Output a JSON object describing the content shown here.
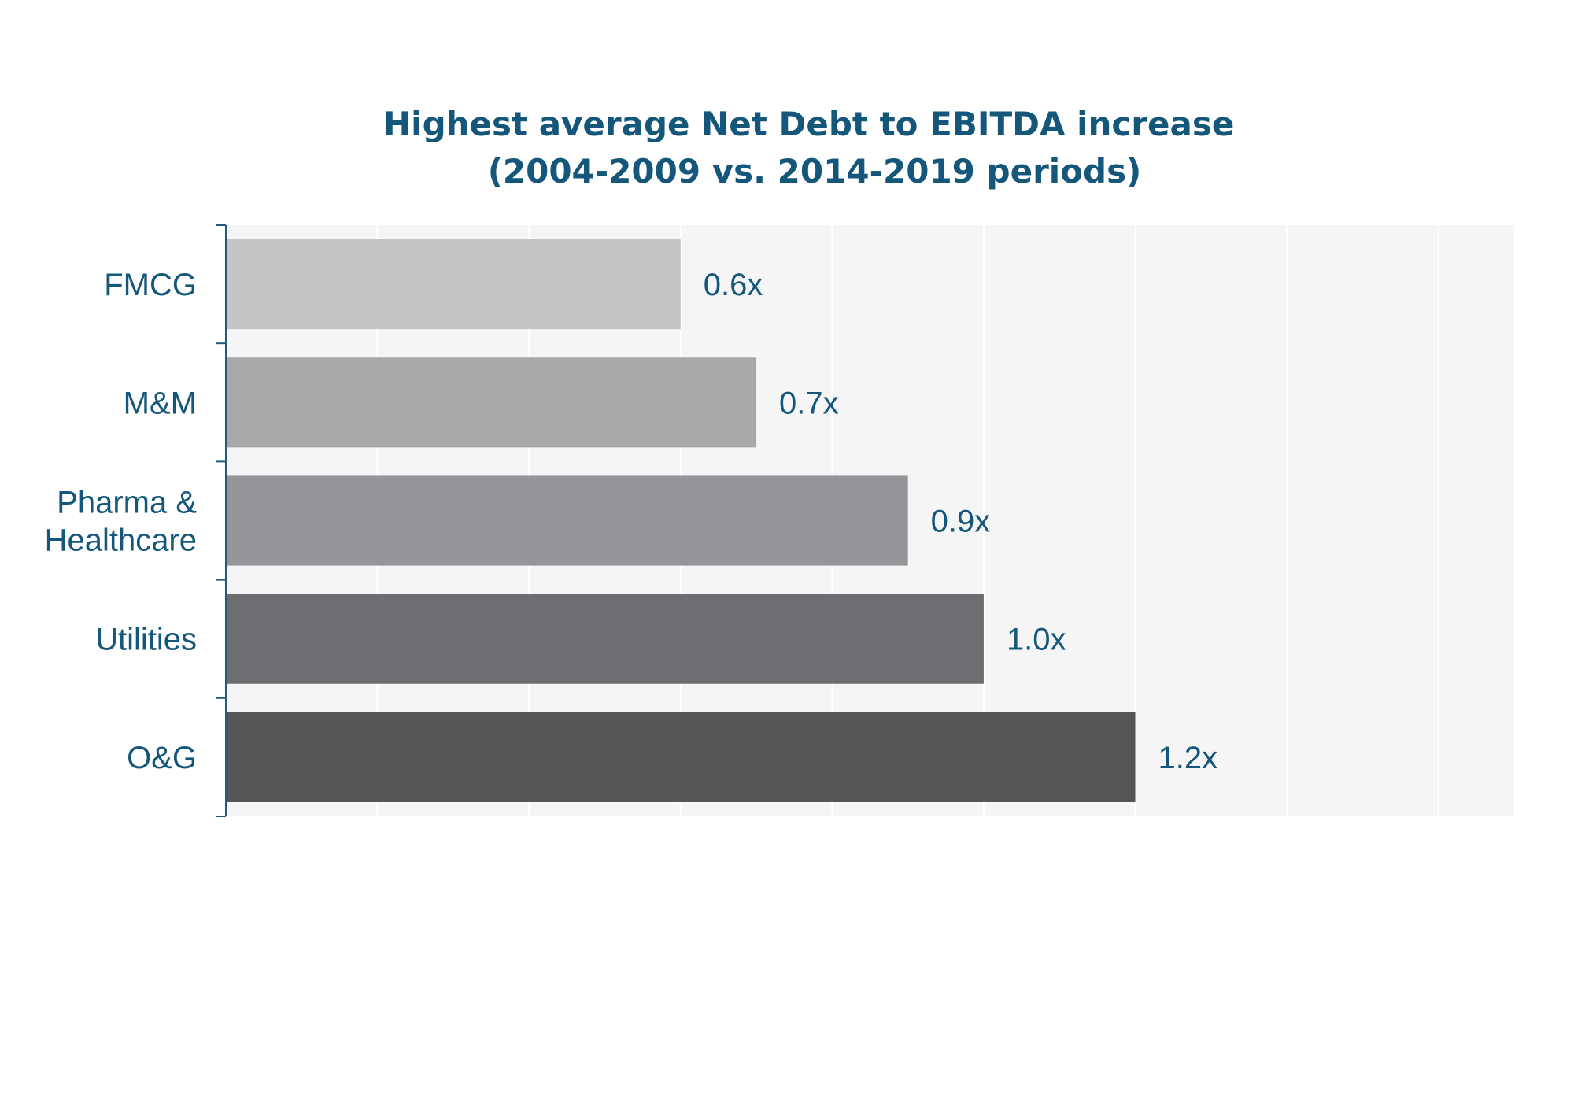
{
  "chart_data": {
    "type": "bar",
    "orientation": "horizontal",
    "title": "Highest average Net Debt to EBITDA increase\n(2004-2009 vs. 2014-2019 periods)",
    "categories": [
      "FMCG",
      "M&M",
      "Pharma &\nHealthcare",
      "Utilities",
      "O&G"
    ],
    "values": [
      0.6,
      0.7,
      0.9,
      1.0,
      1.2
    ],
    "data_labels": [
      "0.6x",
      "0.7x",
      "0.9x",
      "1.0x",
      "1.2x"
    ],
    "xlabel": "",
    "ylabel": "",
    "xlim": [
      0,
      1.7
    ],
    "grid": true,
    "legend": "none",
    "colors": {
      "bars": [
        "#c4c5c7",
        "#a7a8aa",
        "#939598",
        "#6d6e71",
        "#545557"
      ],
      "text": "#14577a",
      "axis": "#1f5a82",
      "plot_background": "#f5f5f5",
      "gridline": "#ffffff"
    }
  }
}
